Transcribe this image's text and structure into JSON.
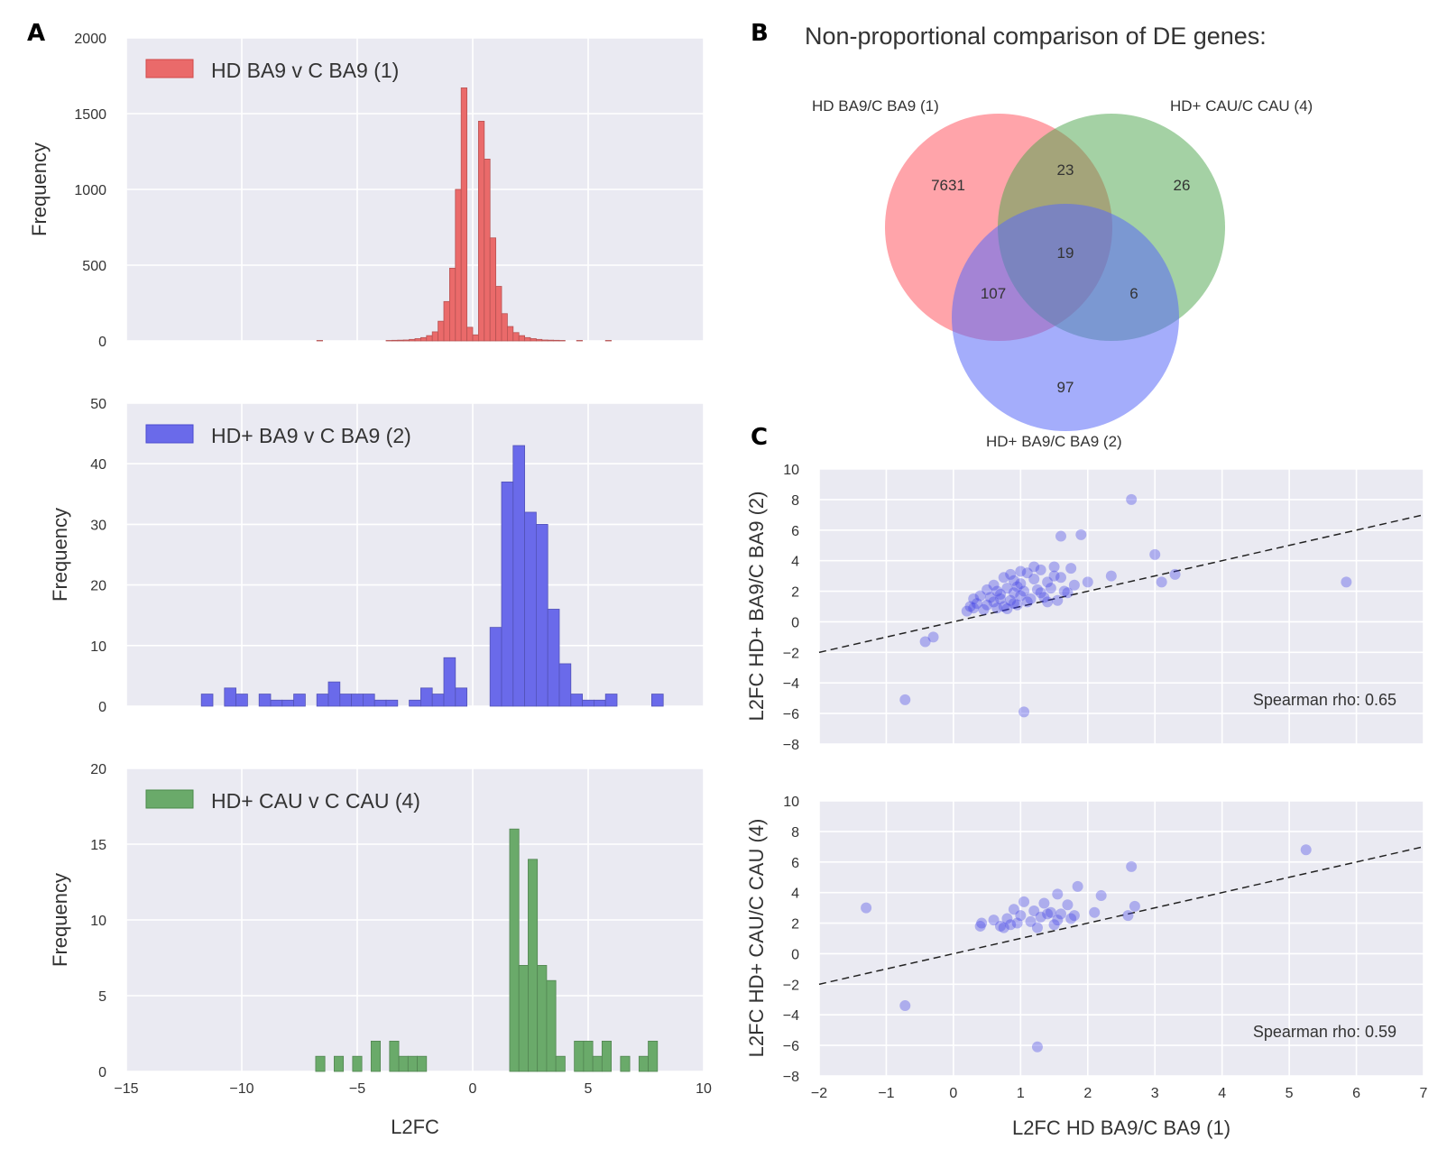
{
  "panel_letters": {
    "a": "A",
    "b": "B",
    "c": "C"
  },
  "chart_data": [
    {
      "id": "hist1",
      "type": "bar",
      "legend": "HD BA9 v C BA9 (1)",
      "color": "#ea6a6a",
      "ylabel": "Frequency",
      "xlabel": "",
      "xlim": [
        -15,
        10
      ],
      "ylim": [
        0,
        2000
      ],
      "yticks": [
        "0",
        "500",
        "1000",
        "1500",
        "2000"
      ],
      "ytick_values": [
        0,
        500,
        1000,
        1500,
        2000
      ],
      "xtick_values": [
        -15,
        -10,
        -5,
        0,
        5,
        10
      ],
      "bin_width": 0.25,
      "bins": [
        [
          -6.75,
          3
        ],
        [
          -3.75,
          3
        ],
        [
          -3.5,
          4
        ],
        [
          -3.25,
          5
        ],
        [
          -3.0,
          6
        ],
        [
          -2.75,
          10
        ],
        [
          -2.5,
          15
        ],
        [
          -2.25,
          22
        ],
        [
          -2.0,
          35
        ],
        [
          -1.75,
          60
        ],
        [
          -1.5,
          130
        ],
        [
          -1.25,
          260
        ],
        [
          -1.0,
          480
        ],
        [
          -0.75,
          1000
        ],
        [
          -0.5,
          1670
        ],
        [
          -0.25,
          90
        ],
        [
          0.0,
          40
        ],
        [
          0.25,
          1450
        ],
        [
          0.5,
          1200
        ],
        [
          0.75,
          680
        ],
        [
          1.0,
          360
        ],
        [
          1.25,
          180
        ],
        [
          1.5,
          95
        ],
        [
          1.75,
          55
        ],
        [
          2.0,
          35
        ],
        [
          2.25,
          22
        ],
        [
          2.5,
          15
        ],
        [
          2.75,
          10
        ],
        [
          3.0,
          6
        ],
        [
          3.25,
          5
        ],
        [
          3.5,
          4
        ],
        [
          3.75,
          3
        ],
        [
          4.5,
          3
        ],
        [
          5.75,
          3
        ]
      ]
    },
    {
      "id": "hist2",
      "type": "bar",
      "legend": "HD+ BA9 v C BA9 (2)",
      "color": "#6a6aea",
      "ylabel": "Frequency",
      "xlabel": "",
      "xlim": [
        -15,
        10
      ],
      "ylim": [
        0,
        50
      ],
      "yticks": [
        "0",
        "10",
        "20",
        "30",
        "40",
        "50"
      ],
      "ytick_values": [
        0,
        10,
        20,
        30,
        40,
        50
      ],
      "xtick_values": [
        -15,
        -10,
        -5,
        0,
        5,
        10
      ],
      "bin_width": 0.5,
      "bins": [
        [
          -11.75,
          2
        ],
        [
          -10.75,
          3
        ],
        [
          -10.25,
          2
        ],
        [
          -9.25,
          2
        ],
        [
          -8.75,
          1
        ],
        [
          -8.25,
          1
        ],
        [
          -7.75,
          2
        ],
        [
          -6.75,
          2
        ],
        [
          -6.25,
          4
        ],
        [
          -5.75,
          2
        ],
        [
          -5.25,
          2
        ],
        [
          -4.75,
          2
        ],
        [
          -4.25,
          1
        ],
        [
          -3.75,
          1
        ],
        [
          -2.75,
          1
        ],
        [
          -2.25,
          3
        ],
        [
          -1.75,
          2
        ],
        [
          -1.25,
          8
        ],
        [
          -0.75,
          3
        ],
        [
          0.75,
          13
        ],
        [
          1.25,
          37
        ],
        [
          1.75,
          43
        ],
        [
          2.25,
          32
        ],
        [
          2.75,
          30
        ],
        [
          3.25,
          16
        ],
        [
          3.75,
          7
        ],
        [
          4.25,
          2
        ],
        [
          4.75,
          1
        ],
        [
          5.25,
          1
        ],
        [
          5.75,
          2
        ],
        [
          7.75,
          2
        ]
      ]
    },
    {
      "id": "hist3",
      "type": "bar",
      "legend": "HD+ CAU v C CAU (4)",
      "color": "#6aaa6a",
      "ylabel": "Frequency",
      "xlabel": "L2FC",
      "xlim": [
        -15,
        10
      ],
      "ylim": [
        0,
        20
      ],
      "yticks": [
        "0",
        "5",
        "10",
        "15",
        "20"
      ],
      "ytick_values": [
        0,
        5,
        10,
        15,
        20
      ],
      "xticks": [
        "−15",
        "−10",
        "−5",
        "0",
        "5",
        "10"
      ],
      "xtick_values": [
        -15,
        -10,
        -5,
        0,
        5,
        10
      ],
      "bin_width": 0.4,
      "bins": [
        [
          -6.8,
          1
        ],
        [
          -6.0,
          1
        ],
        [
          -5.2,
          1
        ],
        [
          -4.4,
          2
        ],
        [
          -3.6,
          2
        ],
        [
          -3.2,
          1
        ],
        [
          -2.8,
          1
        ],
        [
          -2.4,
          1
        ],
        [
          1.6,
          16
        ],
        [
          2.0,
          7
        ],
        [
          2.4,
          14
        ],
        [
          2.8,
          7
        ],
        [
          3.2,
          6
        ],
        [
          3.6,
          1
        ],
        [
          4.4,
          2
        ],
        [
          4.8,
          2
        ],
        [
          5.2,
          1
        ],
        [
          5.6,
          2
        ],
        [
          6.4,
          1
        ],
        [
          7.2,
          1
        ],
        [
          7.6,
          2
        ]
      ]
    },
    {
      "id": "scatter1",
      "type": "scatter",
      "ylabel": "L2FC HD+ BA9/C BA9 (2)",
      "xlabel": "",
      "xlim": [
        -2,
        7
      ],
      "ylim": [
        -8,
        10
      ],
      "yticks": [
        "−8",
        "−6",
        "−4",
        "−2",
        "0",
        "2",
        "4",
        "6",
        "8",
        "10"
      ],
      "ytick_values": [
        -8,
        -6,
        -4,
        -2,
        0,
        2,
        4,
        6,
        8,
        10
      ],
      "xtick_values": [
        -2,
        -1,
        0,
        1,
        2,
        3,
        4,
        5,
        6,
        7
      ],
      "annotation": "Spearman rho: 0.65",
      "fit_line": [
        [
          -2,
          -2
        ],
        [
          7,
          7
        ]
      ],
      "points": [
        [
          2.65,
          8.0
        ],
        [
          1.6,
          5.6
        ],
        [
          1.9,
          5.7
        ],
        [
          3.0,
          4.4
        ],
        [
          5.85,
          2.6
        ],
        [
          3.1,
          2.6
        ],
        [
          3.3,
          3.1
        ],
        [
          2.35,
          3.0
        ],
        [
          2.0,
          2.6
        ],
        [
          1.75,
          3.5
        ],
        [
          1.5,
          3.6
        ],
        [
          1.3,
          3.4
        ],
        [
          1.1,
          3.2
        ],
        [
          1.0,
          3.3
        ],
        [
          0.85,
          3.1
        ],
        [
          0.75,
          2.9
        ],
        [
          0.9,
          2.7
        ],
        [
          1.2,
          2.8
        ],
        [
          1.4,
          2.6
        ],
        [
          1.6,
          2.9
        ],
        [
          1.8,
          2.4
        ],
        [
          0.5,
          2.1
        ],
        [
          0.65,
          2.0
        ],
        [
          0.8,
          2.2
        ],
        [
          0.95,
          2.3
        ],
        [
          1.05,
          2.0
        ],
        [
          1.25,
          2.1
        ],
        [
          1.45,
          2.2
        ],
        [
          1.65,
          2.0
        ],
        [
          0.3,
          1.5
        ],
        [
          0.4,
          1.7
        ],
        [
          0.55,
          1.6
        ],
        [
          0.7,
          1.8
        ],
        [
          0.85,
          1.4
        ],
        [
          1.0,
          1.7
        ],
        [
          1.15,
          1.5
        ],
        [
          1.35,
          1.6
        ],
        [
          1.55,
          1.4
        ],
        [
          0.25,
          1.0
        ],
        [
          0.35,
          1.2
        ],
        [
          0.5,
          1.1
        ],
        [
          0.6,
          1.3
        ],
        [
          0.75,
          1.0
        ],
        [
          0.9,
          1.2
        ],
        [
          1.1,
          1.3
        ],
        [
          0.45,
          0.8
        ],
        [
          0.65,
          0.9
        ],
        [
          0.8,
          0.85
        ],
        [
          0.2,
          0.7
        ],
        [
          1.7,
          1.9
        ],
        [
          1.3,
          1.9
        ],
        [
          0.6,
          2.4
        ],
        [
          1.0,
          2.5
        ],
        [
          1.5,
          3.0
        ],
        [
          1.2,
          3.6
        ],
        [
          0.7,
          1.5
        ],
        [
          0.9,
          1.9
        ],
        [
          1.4,
          1.3
        ],
        [
          0.3,
          0.9
        ],
        [
          0.95,
          1.1
        ],
        [
          -0.3,
          -1.0
        ],
        [
          -0.42,
          -1.3
        ],
        [
          -0.72,
          -5.1
        ],
        [
          1.05,
          -5.9
        ]
      ]
    },
    {
      "id": "scatter2",
      "type": "scatter",
      "ylabel": "L2FC HD+ CAU/C CAU (4)",
      "xlabel": "L2FC HD BA9/C BA9 (1)",
      "xlim": [
        -2,
        7
      ],
      "ylim": [
        -8,
        10
      ],
      "yticks": [
        "−8",
        "−6",
        "−4",
        "−2",
        "0",
        "2",
        "4",
        "6",
        "8",
        "10"
      ],
      "ytick_values": [
        -8,
        -6,
        -4,
        -2,
        0,
        2,
        4,
        6,
        8,
        10
      ],
      "xticks": [
        "−2",
        "−1",
        "0",
        "1",
        "2",
        "3",
        "4",
        "5",
        "6",
        "7"
      ],
      "xtick_values": [
        -2,
        -1,
        0,
        1,
        2,
        3,
        4,
        5,
        6,
        7
      ],
      "annotation": "Spearman rho: 0.59",
      "fit_line": [
        [
          -2,
          -2
        ],
        [
          7,
          7
        ]
      ],
      "points": [
        [
          5.25,
          6.8
        ],
        [
          2.65,
          5.7
        ],
        [
          1.85,
          4.4
        ],
        [
          1.55,
          3.9
        ],
        [
          2.2,
          3.8
        ],
        [
          1.05,
          3.4
        ],
        [
          1.35,
          3.3
        ],
        [
          1.7,
          3.2
        ],
        [
          2.7,
          3.1
        ],
        [
          -1.3,
          3.0
        ],
        [
          0.9,
          2.9
        ],
        [
          1.2,
          2.8
        ],
        [
          1.45,
          2.7
        ],
        [
          1.6,
          2.6
        ],
        [
          2.1,
          2.7
        ],
        [
          2.6,
          2.5
        ],
        [
          0.6,
          2.2
        ],
        [
          0.8,
          2.3
        ],
        [
          1.0,
          2.5
        ],
        [
          1.3,
          2.4
        ],
        [
          1.55,
          2.2
        ],
        [
          1.8,
          2.5
        ],
        [
          0.42,
          2.0
        ],
        [
          0.7,
          1.8
        ],
        [
          0.95,
          2.0
        ],
        [
          1.25,
          1.7
        ],
        [
          1.5,
          1.9
        ],
        [
          1.75,
          2.3
        ],
        [
          0.4,
          1.8
        ],
        [
          0.85,
          1.9
        ],
        [
          1.15,
          2.1
        ],
        [
          1.4,
          2.6
        ],
        [
          0.75,
          1.7
        ],
        [
          -0.72,
          -3.4
        ],
        [
          1.25,
          -6.1
        ]
      ]
    }
  ],
  "venn": {
    "title": "Non-proportional comparison of DE genes:",
    "sets": [
      {
        "label": "HD BA9/C BA9 (1)",
        "color": "#ff5a64"
      },
      {
        "label": "HD+ CAU/C CAU (4)",
        "color": "#4aa34a"
      },
      {
        "label": "HD+ BA9/C BA9 (2)",
        "color": "#5a6af8"
      }
    ],
    "counts": {
      "only_1": "7631",
      "only_4": "26",
      "only_2": "97",
      "1_and_4": "23",
      "1_and_2": "107",
      "2_and_4": "6",
      "all": "19"
    }
  }
}
